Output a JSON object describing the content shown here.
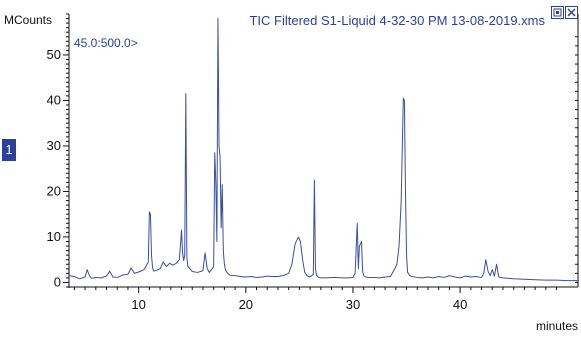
{
  "window": {
    "title": "TIC Filtered S1-Liquid 4-32-30 PM 13-08-2019.xms",
    "badge": "1",
    "title_color": "#2b3f9e"
  },
  "chart_data": {
    "type": "line",
    "title": "TIC Filtered S1-Liquid 4-32-30 PM 13-08-2019.xms",
    "ylabel": "MCounts",
    "xlabel": "minutes",
    "annotation": "45.0:500.0>",
    "xlim": [
      3.5,
      51
    ],
    "ylim": [
      -1,
      59
    ],
    "x_ticks": [
      10,
      20,
      30,
      40
    ],
    "y_ticks": [
      0,
      10,
      20,
      30,
      40,
      50
    ],
    "grid": false,
    "color": "#3a4fa0",
    "series": [
      {
        "x": [
          3.5,
          4.0,
          4.5,
          5.0,
          5.2,
          5.4,
          5.6,
          6.0,
          6.5,
          7.0,
          7.3,
          7.6,
          8.0,
          8.5,
          9.0,
          9.3,
          9.6,
          10.0,
          10.5,
          10.9,
          11.0,
          11.1,
          11.2,
          11.3,
          11.4,
          11.6,
          12.0,
          12.3,
          12.6,
          12.9,
          13.2,
          13.5,
          13.8,
          14.0,
          14.1,
          14.2,
          14.3,
          14.4,
          14.5,
          14.6,
          14.8,
          15.0,
          15.5,
          16.0,
          16.2,
          16.4,
          16.6,
          17.0,
          17.1,
          17.2,
          17.3,
          17.4,
          17.5,
          17.6,
          17.7,
          17.8,
          17.9,
          18.0,
          18.1,
          18.2,
          18.3,
          18.4,
          18.5,
          19.0,
          19.5,
          20.0,
          20.5,
          21.0,
          21.5,
          22.0,
          22.5,
          23.0,
          23.5,
          24.0,
          24.3,
          24.6,
          24.9,
          25.1,
          25.3,
          25.5,
          25.7,
          26.0,
          26.3,
          26.4,
          26.5,
          26.6,
          26.8,
          27.0,
          27.5,
          28.0,
          28.5,
          29.0,
          29.5,
          30.0,
          30.2,
          30.4,
          30.5,
          30.6,
          30.8,
          30.9,
          31.0,
          31.2,
          31.5,
          32.0,
          32.5,
          33.0,
          33.5,
          33.9,
          34.1,
          34.3,
          34.5,
          34.7,
          34.8,
          34.9,
          35.0,
          35.1,
          35.3,
          35.5,
          36.0,
          36.5,
          37.0,
          37.5,
          38.0,
          38.5,
          39.0,
          39.5,
          40.0,
          40.5,
          41.0,
          41.5,
          42.0,
          42.2,
          42.4,
          42.6,
          42.8,
          43.0,
          43.2,
          43.4,
          43.6,
          44.0,
          45.0,
          46.0,
          47.0,
          48.0,
          49.0,
          50.0,
          51.0
        ],
        "y": [
          1.5,
          1.3,
          0.8,
          1.2,
          2.8,
          1.5,
          0.9,
          1.1,
          1.0,
          1.4,
          2.5,
          1.2,
          1.1,
          1.6,
          1.8,
          3.2,
          2.0,
          2.3,
          2.8,
          4.5,
          15.5,
          15.0,
          6.0,
          3.2,
          2.5,
          2.6,
          3.0,
          4.5,
          3.5,
          4.2,
          3.8,
          4.2,
          5.0,
          11.5,
          6.5,
          4.8,
          6.0,
          41.5,
          5.5,
          3.5,
          3.0,
          2.4,
          2.2,
          2.6,
          6.5,
          3.0,
          2.2,
          3.5,
          28.5,
          22.0,
          9.0,
          58.0,
          30.0,
          27.5,
          12.0,
          21.5,
          7.0,
          4.0,
          2.8,
          2.4,
          2.0,
          1.8,
          1.6,
          1.5,
          1.3,
          1.2,
          1.3,
          1.1,
          1.2,
          1.4,
          1.3,
          1.3,
          1.5,
          2.0,
          4.0,
          8.5,
          10.0,
          9.0,
          5.0,
          2.2,
          1.5,
          1.2,
          1.8,
          22.5,
          3.0,
          1.6,
          1.1,
          1.0,
          1.0,
          1.1,
          1.1,
          1.0,
          1.0,
          1.1,
          2.0,
          13.0,
          3.0,
          8.0,
          9.0,
          2.5,
          1.5,
          1.2,
          1.1,
          1.1,
          1.0,
          1.2,
          1.3,
          3.0,
          4.0,
          8.0,
          18.0,
          40.5,
          40.0,
          20.0,
          6.0,
          2.2,
          1.5,
          1.3,
          1.1,
          1.0,
          1.2,
          1.0,
          1.3,
          1.1,
          1.5,
          1.2,
          1.0,
          1.4,
          1.2,
          1.3,
          1.1,
          2.0,
          5.0,
          2.5,
          1.5,
          2.8,
          1.4,
          4.0,
          1.2,
          1.0,
          0.8,
          0.7,
          0.6,
          0.5,
          0.5,
          0.4,
          0.4
        ]
      }
    ]
  }
}
